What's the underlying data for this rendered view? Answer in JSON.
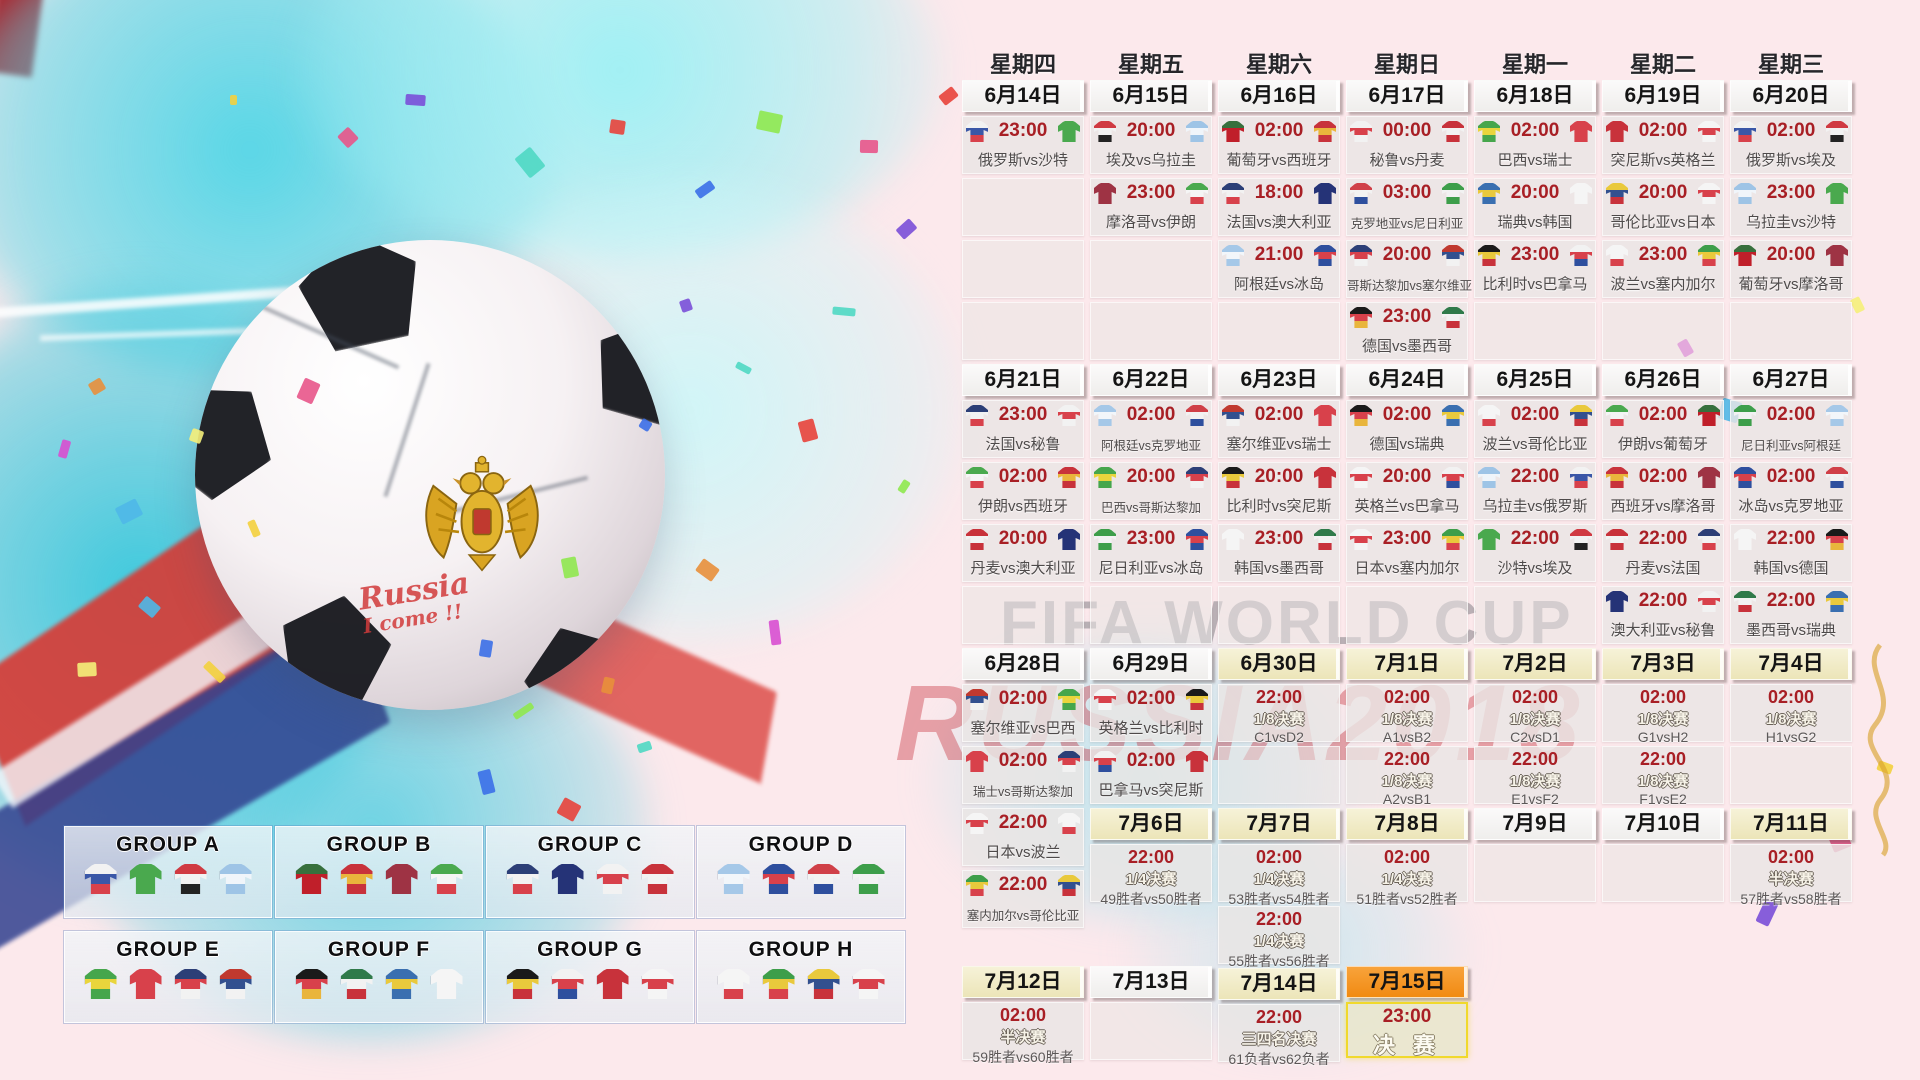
{
  "watermark": {
    "line1": "FIFA WORLD CUP",
    "line2": "RUSSIA2018"
  },
  "ball": {
    "handwriting_line1": "Russia",
    "handwriting_line2": "I come !!"
  },
  "weekdays": [
    "星期四",
    "星期五",
    "星期六",
    "星期日",
    "星期一",
    "星期二",
    "星期三"
  ],
  "colors": {
    "time_red": "#a81f25",
    "date_cream": "#ece5b8",
    "date_orange": "#f18a12",
    "final_border_yellow": "#f0d92c",
    "watermark_red": "#c62834"
  },
  "jersey_colors": {
    "俄罗斯": [
      "#f2f2f2",
      "#3a57a7",
      "#d8414b"
    ],
    "沙特": [
      "#4aa94e"
    ],
    "埃及": [
      "#d03a42",
      "#f2f2f2",
      "#232323"
    ],
    "乌拉圭": [
      "#9ec4e6",
      "#f0f5fa",
      "#9ec4e6"
    ],
    "摩洛哥": [
      "#9e3344"
    ],
    "伊朗": [
      "#4aa94e",
      "#f5f5f5",
      "#d8414b"
    ],
    "葡萄牙": [
      "#37703d",
      "#c01f2a",
      "#c01f2a"
    ],
    "西班牙": [
      "#c8323b",
      "#e9b53c",
      "#c8323b"
    ],
    "法国": [
      "#2c3f77",
      "#f2f2f2",
      "#d8414b"
    ],
    "澳大利亚": [
      "#253377"
    ],
    "阿根廷": [
      "#a5c8e8",
      "#f2f6fa",
      "#a5c8e8"
    ],
    "冰岛": [
      "#2e4f9e",
      "#d8414b",
      "#2e4f9e"
    ],
    "秘鲁": [
      "#f2f2f2",
      "#d8414b",
      "#f2f2f2"
    ],
    "丹麦": [
      "#c8323b",
      "#f2f2f2",
      "#c8323b"
    ],
    "克罗地亚": [
      "#d04048",
      "#f2f2f2",
      "#2e4f9e"
    ],
    "尼日利亚": [
      "#3d9e4a",
      "#f2f2f2",
      "#3d9e4a"
    ],
    "哥斯达黎加": [
      "#2c3f77",
      "#d8414b",
      "#f2f2f2"
    ],
    "塞尔维亚": [
      "#c0392f",
      "#32508f",
      "#f2f2f2"
    ],
    "德国": [
      "#1a1a1a",
      "#d8414b",
      "#e9b53c"
    ],
    "墨西哥": [
      "#2f7a4a",
      "#f2f2f2",
      "#c8323b"
    ],
    "巴西": [
      "#46a64c",
      "#e9d53c",
      "#46a64c"
    ],
    "瑞士": [
      "#d8414b"
    ],
    "瑞典": [
      "#3a6fb0",
      "#e9c93c",
      "#3a6fb0"
    ],
    "韩国": [
      "#f5f5f5"
    ],
    "比利时": [
      "#1a1a1a",
      "#e9c93c",
      "#c8323b"
    ],
    "巴拿马": [
      "#f2f2f2",
      "#d8414b",
      "#2e4f9e"
    ],
    "突尼斯": [
      "#c8323b"
    ],
    "英格兰": [
      "#f5f5f5",
      "#d8414b",
      "#f5f5f5"
    ],
    "波兰": [
      "#f5f5f5",
      "#f5f5f5",
      "#d8414b"
    ],
    "塞内加尔": [
      "#3d9e4a",
      "#e9c93c",
      "#d8414b"
    ],
    "哥伦比亚": [
      "#e9c93c",
      "#32508f",
      "#c8323b"
    ],
    "日本": [
      "#f5f5f5",
      "#d8414b",
      "#f5f5f5"
    ]
  },
  "columns": [
    {
      "weekday": "星期四",
      "items": [
        {
          "t": "date",
          "label": "6月14日",
          "style": "white"
        },
        {
          "t": "match",
          "time": "23:00",
          "a": "俄罗斯",
          "b": "沙特"
        },
        {
          "t": "empty"
        },
        {
          "t": "empty"
        },
        {
          "t": "empty"
        },
        {
          "t": "date",
          "label": "6月21日",
          "style": "white"
        },
        {
          "t": "match",
          "time": "23:00",
          "a": "法国",
          "b": "秘鲁"
        },
        {
          "t": "match",
          "time": "02:00",
          "a": "伊朗",
          "b": "西班牙"
        },
        {
          "t": "match",
          "time": "20:00",
          "a": "丹麦",
          "b": "澳大利亚"
        },
        {
          "t": "empty"
        },
        {
          "t": "date",
          "label": "6月28日",
          "style": "white"
        },
        {
          "t": "match",
          "time": "02:00",
          "a": "塞尔维亚",
          "b": "巴西"
        },
        {
          "t": "match",
          "time": "02:00",
          "a": "瑞士",
          "b": "哥斯达黎加"
        },
        {
          "t": "match",
          "time": "22:00",
          "a": "日本",
          "b": "波兰"
        },
        {
          "t": "match",
          "time": "22:00",
          "a": "塞内加尔",
          "b": "哥伦比亚"
        },
        {
          "t": "ds"
        },
        {
          "t": "date",
          "label": "7月12日",
          "style": "cream"
        },
        {
          "t": "ko",
          "time": "02:00",
          "stage": "半决赛",
          "detail": "59胜者vs60胜者"
        }
      ]
    },
    {
      "weekday": "星期五",
      "items": [
        {
          "t": "date",
          "label": "6月15日",
          "style": "white"
        },
        {
          "t": "match",
          "time": "20:00",
          "a": "埃及",
          "b": "乌拉圭"
        },
        {
          "t": "match",
          "time": "23:00",
          "a": "摩洛哥",
          "b": "伊朗"
        },
        {
          "t": "empty"
        },
        {
          "t": "empty"
        },
        {
          "t": "date",
          "label": "6月22日",
          "style": "white"
        },
        {
          "t": "match",
          "time": "02:00",
          "a": "阿根廷",
          "b": "克罗地亚"
        },
        {
          "t": "match",
          "time": "20:00",
          "a": "巴西",
          "b": "哥斯达黎加"
        },
        {
          "t": "match",
          "time": "23:00",
          "a": "尼日利亚",
          "b": "冰岛"
        },
        {
          "t": "empty"
        },
        {
          "t": "date",
          "label": "6月29日",
          "style": "white"
        },
        {
          "t": "match",
          "time": "02:00",
          "a": "英格兰",
          "b": "比利时"
        },
        {
          "t": "match",
          "time": "02:00",
          "a": "巴拿马",
          "b": "突尼斯"
        },
        {
          "t": "date",
          "label": "7月6日",
          "style": "cream"
        },
        {
          "t": "ko",
          "time": "22:00",
          "stage": "1/4决赛",
          "detail": "49胜者vs50胜者"
        },
        {
          "t": "cs"
        },
        {
          "t": "date",
          "label": "7月13日",
          "style": "white"
        },
        {
          "t": "empty"
        }
      ]
    },
    {
      "weekday": "星期六",
      "items": [
        {
          "t": "date",
          "label": "6月16日",
          "style": "white"
        },
        {
          "t": "match",
          "time": "02:00",
          "a": "葡萄牙",
          "b": "西班牙"
        },
        {
          "t": "match",
          "time": "18:00",
          "a": "法国",
          "b": "澳大利亚"
        },
        {
          "t": "match",
          "time": "21:00",
          "a": "阿根廷",
          "b": "冰岛"
        },
        {
          "t": "empty"
        },
        {
          "t": "date",
          "label": "6月23日",
          "style": "white"
        },
        {
          "t": "match",
          "time": "02:00",
          "a": "塞尔维亚",
          "b": "瑞士"
        },
        {
          "t": "match",
          "time": "20:00",
          "a": "比利时",
          "b": "突尼斯"
        },
        {
          "t": "match",
          "time": "23:00",
          "a": "韩国",
          "b": "墨西哥"
        },
        {
          "t": "empty"
        },
        {
          "t": "date",
          "label": "6月30日",
          "style": "cream"
        },
        {
          "t": "ko",
          "time": "22:00",
          "stage": "1/8决赛",
          "detail": "C1vsD2"
        },
        {
          "t": "empty"
        },
        {
          "t": "date",
          "label": "7月7日",
          "style": "cream"
        },
        {
          "t": "ko",
          "time": "02:00",
          "stage": "1/4决赛",
          "detail": "53胜者vs54胜者"
        },
        {
          "t": "ko",
          "time": "22:00",
          "stage": "1/4决赛",
          "detail": "55胜者vs56胜者"
        },
        {
          "t": "date",
          "label": "7月14日",
          "style": "cream"
        },
        {
          "t": "ko",
          "time": "22:00",
          "stage": "三四名决赛",
          "detail": "61负者vs62负者"
        }
      ]
    },
    {
      "weekday": "星期日",
      "items": [
        {
          "t": "date",
          "label": "6月17日",
          "style": "white"
        },
        {
          "t": "match",
          "time": "00:00",
          "a": "秘鲁",
          "b": "丹麦"
        },
        {
          "t": "match",
          "time": "03:00",
          "a": "克罗地亚",
          "b": "尼日利亚"
        },
        {
          "t": "match",
          "time": "20:00",
          "a": "哥斯达黎加",
          "b": "塞尔维亚"
        },
        {
          "t": "match",
          "time": "23:00",
          "a": "德国",
          "b": "墨西哥"
        },
        {
          "t": "date",
          "label": "6月24日",
          "style": "white"
        },
        {
          "t": "match",
          "time": "02:00",
          "a": "德国",
          "b": "瑞典"
        },
        {
          "t": "match",
          "time": "20:00",
          "a": "英格兰",
          "b": "巴拿马"
        },
        {
          "t": "match",
          "time": "23:00",
          "a": "日本",
          "b": "塞内加尔"
        },
        {
          "t": "empty"
        },
        {
          "t": "date",
          "label": "7月1日",
          "style": "cream"
        },
        {
          "t": "ko",
          "time": "02:00",
          "stage": "1/8决赛",
          "detail": "A1vsB2"
        },
        {
          "t": "ko",
          "time": "22:00",
          "stage": "1/8决赛",
          "detail": "A2vsB1"
        },
        {
          "t": "date",
          "label": "7月8日",
          "style": "cream"
        },
        {
          "t": "ko",
          "time": "02:00",
          "stage": "1/4决赛",
          "detail": "51胜者vs52胜者"
        },
        {
          "t": "cs"
        },
        {
          "t": "date",
          "label": "7月15日",
          "style": "orange"
        },
        {
          "t": "final",
          "time": "23:00",
          "label": "决 赛"
        }
      ]
    },
    {
      "weekday": "星期一",
      "items": [
        {
          "t": "date",
          "label": "6月18日",
          "style": "white"
        },
        {
          "t": "match",
          "time": "02:00",
          "a": "巴西",
          "b": "瑞士"
        },
        {
          "t": "match",
          "time": "20:00",
          "a": "瑞典",
          "b": "韩国"
        },
        {
          "t": "match",
          "time": "23:00",
          "a": "比利时",
          "b": "巴拿马"
        },
        {
          "t": "empty"
        },
        {
          "t": "date",
          "label": "6月25日",
          "style": "white"
        },
        {
          "t": "match",
          "time": "02:00",
          "a": "波兰",
          "b": "哥伦比亚"
        },
        {
          "t": "match",
          "time": "22:00",
          "a": "乌拉圭",
          "b": "俄罗斯"
        },
        {
          "t": "match",
          "time": "22:00",
          "a": "沙特",
          "b": "埃及"
        },
        {
          "t": "empty"
        },
        {
          "t": "date",
          "label": "7月2日",
          "style": "cream"
        },
        {
          "t": "ko",
          "time": "02:00",
          "stage": "1/8决赛",
          "detail": "C2vsD1"
        },
        {
          "t": "ko",
          "time": "22:00",
          "stage": "1/8决赛",
          "detail": "E1vsF2"
        },
        {
          "t": "date",
          "label": "7月9日",
          "style": "white"
        },
        {
          "t": "empty"
        }
      ]
    },
    {
      "weekday": "星期二",
      "items": [
        {
          "t": "date",
          "label": "6月19日",
          "style": "white"
        },
        {
          "t": "match",
          "time": "02:00",
          "a": "突尼斯",
          "b": "英格兰"
        },
        {
          "t": "match",
          "time": "20:00",
          "a": "哥伦比亚",
          "b": "日本"
        },
        {
          "t": "match",
          "time": "23:00",
          "a": "波兰",
          "b": "塞内加尔"
        },
        {
          "t": "empty"
        },
        {
          "t": "date",
          "label": "6月26日",
          "style": "white"
        },
        {
          "t": "match",
          "time": "02:00",
          "a": "伊朗",
          "b": "葡萄牙"
        },
        {
          "t": "match",
          "time": "02:00",
          "a": "西班牙",
          "b": "摩洛哥"
        },
        {
          "t": "match",
          "time": "22:00",
          "a": "丹麦",
          "b": "法国"
        },
        {
          "t": "match",
          "time": "22:00",
          "a": "澳大利亚",
          "b": "秘鲁"
        },
        {
          "t": "date",
          "label": "7月3日",
          "style": "cream"
        },
        {
          "t": "ko",
          "time": "02:00",
          "stage": "1/8决赛",
          "detail": "G1vsH2"
        },
        {
          "t": "ko",
          "time": "22:00",
          "stage": "1/8决赛",
          "detail": "F1vsE2"
        },
        {
          "t": "date",
          "label": "7月10日",
          "style": "white"
        },
        {
          "t": "empty"
        }
      ]
    },
    {
      "weekday": "星期三",
      "items": [
        {
          "t": "date",
          "label": "6月20日",
          "style": "white"
        },
        {
          "t": "match",
          "time": "02:00",
          "a": "俄罗斯",
          "b": "埃及"
        },
        {
          "t": "match",
          "time": "23:00",
          "a": "乌拉圭",
          "b": "沙特"
        },
        {
          "t": "match",
          "time": "20:00",
          "a": "葡萄牙",
          "b": "摩洛哥"
        },
        {
          "t": "empty"
        },
        {
          "t": "date",
          "label": "6月27日",
          "style": "white"
        },
        {
          "t": "match",
          "time": "02:00",
          "a": "尼日利亚",
          "b": "阿根廷"
        },
        {
          "t": "match",
          "time": "02:00",
          "a": "冰岛",
          "b": "克罗地亚"
        },
        {
          "t": "match",
          "time": "22:00",
          "a": "韩国",
          "b": "德国"
        },
        {
          "t": "match",
          "time": "22:00",
          "a": "墨西哥",
          "b": "瑞典"
        },
        {
          "t": "date",
          "label": "7月4日",
          "style": "cream"
        },
        {
          "t": "ko",
          "time": "02:00",
          "stage": "1/8决赛",
          "detail": "H1vsG2"
        },
        {
          "t": "empty"
        },
        {
          "t": "date",
          "label": "7月11日",
          "style": "cream"
        },
        {
          "t": "ko",
          "time": "02:00",
          "stage": "半决赛",
          "detail": "57胜者vs58胜者"
        }
      ]
    }
  ],
  "groups": [
    {
      "name": "GROUP A",
      "teams": [
        "俄罗斯",
        "沙特",
        "埃及",
        "乌拉圭"
      ]
    },
    {
      "name": "GROUP B",
      "teams": [
        "葡萄牙",
        "西班牙",
        "摩洛哥",
        "伊朗"
      ]
    },
    {
      "name": "GROUP C",
      "teams": [
        "法国",
        "澳大利亚",
        "秘鲁",
        "丹麦"
      ]
    },
    {
      "name": "GROUP D",
      "teams": [
        "阿根廷",
        "冰岛",
        "克罗地亚",
        "尼日利亚"
      ]
    },
    {
      "name": "GROUP E",
      "teams": [
        "巴西",
        "瑞士",
        "哥斯达黎加",
        "塞尔维亚"
      ]
    },
    {
      "name": "GROUP F",
      "teams": [
        "德国",
        "墨西哥",
        "瑞典",
        "韩国"
      ]
    },
    {
      "name": "GROUP G",
      "teams": [
        "比利时",
        "巴拿马",
        "突尼斯",
        "英格兰"
      ]
    },
    {
      "name": "GROUP H",
      "teams": [
        "波兰",
        "塞内加尔",
        "哥伦比亚",
        "日本"
      ]
    }
  ]
}
